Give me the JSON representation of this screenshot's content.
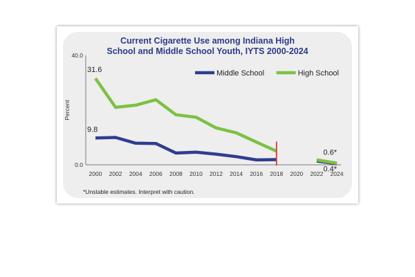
{
  "chart_data": {
    "type": "line",
    "title_lines": [
      "Current Cigarette Use among Indiana High",
      "School and Middle School Youth, IYTS 2000-2024"
    ],
    "ylabel": "Percent",
    "ylim": [
      0,
      40
    ],
    "ytick_labels": [
      "40.0",
      "0.0"
    ],
    "x": [
      2000,
      2002,
      2004,
      2006,
      2008,
      2010,
      2012,
      2014,
      2016,
      2018,
      2020,
      2022,
      2024
    ],
    "series": [
      {
        "name": "Middle School",
        "color": "#2f3d8f",
        "segments": [
          {
            "x": [
              2000,
              2002,
              2004,
              2006,
              2008,
              2010,
              2012,
              2014,
              2016,
              2018
            ],
            "y": [
              9.8,
              10.0,
              7.9,
              7.8,
              4.3,
              4.6,
              3.9,
              3.0,
              1.8,
              1.9
            ]
          },
          {
            "x": [
              2022,
              2024
            ],
            "y": [
              1.4,
              0.4
            ]
          }
        ]
      },
      {
        "name": "High School",
        "color": "#7dc142",
        "segments": [
          {
            "x": [
              2000,
              2002,
              2004,
              2006,
              2008,
              2010,
              2012,
              2014,
              2016,
              2018
            ],
            "y": [
              31.6,
              21.0,
              21.8,
              23.8,
              18.3,
              17.4,
              13.5,
              11.7,
              8.3,
              5.0
            ]
          },
          {
            "x": [
              2022,
              2024
            ],
            "y": [
              1.8,
              0.6
            ]
          }
        ]
      }
    ],
    "data_labels": [
      {
        "text": "31.6",
        "x": 2000,
        "y": 31.6,
        "pos": "above"
      },
      {
        "text": "9.8",
        "x": 2000,
        "y": 9.8,
        "pos": "above"
      },
      {
        "text": "0.6*",
        "x": 2024,
        "y": 0.6,
        "pos": "above"
      },
      {
        "text": "0.4*",
        "x": 2024,
        "y": 0.4,
        "pos": "below"
      }
    ],
    "break_marker": {
      "x": 2018,
      "color": "#e03030"
    },
    "legend_position": "top-right",
    "footnote": "*Unstable estimates. Interpret with caution."
  }
}
